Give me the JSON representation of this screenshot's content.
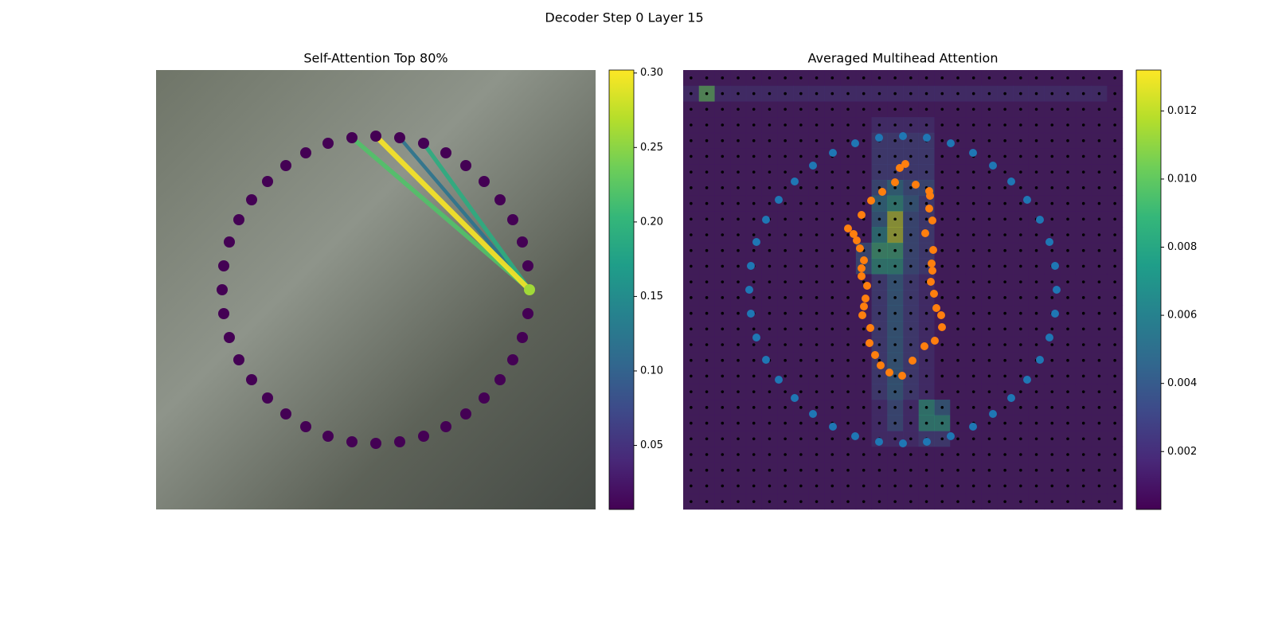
{
  "title": "Decoder Step 0 Layer 15",
  "chart_data": [
    {
      "type": "attention-graph",
      "title": "Self-Attention Top 80%",
      "colormap": "viridis",
      "color": "#440154",
      "xlim": [
        0,
        552
      ],
      "ylim": [
        552,
        0
      ],
      "x": [
        469,
        467,
        460,
        448,
        432,
        412,
        389,
        364,
        336,
        306,
        276,
        246,
        216,
        188,
        163,
        140,
        120,
        104,
        92,
        85,
        83,
        85,
        92,
        104,
        120,
        140,
        163,
        188,
        216,
        246,
        276,
        306,
        336,
        364,
        389,
        412,
        432,
        448,
        460,
        467
      ],
      "y": [
        276,
        306,
        336,
        364,
        389,
        412,
        432,
        448,
        460,
        467,
        469,
        467,
        460,
        448,
        432,
        412,
        389,
        364,
        336,
        306,
        276,
        246,
        216,
        188,
        163,
        140,
        120,
        104,
        92,
        85,
        83,
        85,
        92,
        104,
        120,
        140,
        163,
        188,
        216,
        246
      ],
      "query": {
        "index": 0,
        "value": 0.26
      },
      "edges": [
        {
          "from": 0,
          "to": 29,
          "value": 0.22
        },
        {
          "from": 0,
          "to": 31,
          "value": 0.12
        },
        {
          "from": 0,
          "to": 32,
          "value": 0.19
        },
        {
          "from": 0,
          "to": 30,
          "value": 0.3
        }
      ],
      "clim": [
        0.007,
        0.302
      ],
      "cticks": [
        0.05,
        {
          "value": 0.1,
          "label": "0.10"
        },
        0.15,
        {
          "value": 0.2,
          "label": "0.20"
        },
        0.25,
        {
          "value": 0.3,
          "label": "0.30"
        }
      ]
    },
    {
      "type": "heatmap",
      "title": "Averaged Multihead Attention",
      "colormap": "viridis",
      "xlim": [
        0,
        552
      ],
      "ylim": [
        552,
        0
      ],
      "matrix": [
        [
          0.001,
          0.001,
          0.001,
          0.001,
          0.001,
          0.001,
          0.001,
          0.001,
          0.001,
          0.001,
          0.001,
          0.001,
          0.001,
          0.001,
          0.001,
          0.001,
          0.001,
          0.001,
          0.001,
          0.001,
          0.001,
          0.001,
          0.001,
          0.001,
          0.001,
          0.001,
          0.001,
          0.001
        ],
        [
          0.002,
          0.01,
          0.002,
          0.002,
          0.002,
          0.002,
          0.002,
          0.002,
          0.002,
          0.002,
          0.002,
          0.002,
          0.002,
          0.002,
          0.002,
          0.002,
          0.002,
          0.002,
          0.002,
          0.002,
          0.002,
          0.002,
          0.002,
          0.002,
          0.002,
          0.002,
          0.002,
          0.001
        ],
        [
          0.001,
          0.001,
          0.001,
          0.001,
          0.001,
          0.001,
          0.001,
          0.001,
          0.001,
          0.001,
          0.001,
          0.001,
          0.001,
          0.001,
          0.001,
          0.001,
          0.001,
          0.001,
          0.001,
          0.001,
          0.001,
          0.001,
          0.001,
          0.001,
          0.001,
          0.001,
          0.001,
          0.001
        ],
        [
          0.001,
          0.001,
          0.001,
          0.001,
          0.001,
          0.001,
          0.001,
          0.001,
          0.001,
          0.001,
          0.001,
          0.001,
          0.002,
          0.002,
          0.002,
          0.002,
          0.001,
          0.001,
          0.001,
          0.001,
          0.001,
          0.001,
          0.001,
          0.001,
          0.001,
          0.001,
          0.001,
          0.001
        ],
        [
          0.001,
          0.001,
          0.001,
          0.001,
          0.001,
          0.001,
          0.001,
          0.001,
          0.001,
          0.001,
          0.001,
          0.001,
          0.003,
          0.003,
          0.003,
          0.003,
          0.001,
          0.001,
          0.001,
          0.001,
          0.001,
          0.001,
          0.001,
          0.001,
          0.001,
          0.001,
          0.001,
          0.001
        ],
        [
          0.001,
          0.001,
          0.001,
          0.001,
          0.001,
          0.001,
          0.001,
          0.001,
          0.001,
          0.001,
          0.001,
          0.001,
          0.003,
          0.003,
          0.003,
          0.003,
          0.001,
          0.001,
          0.001,
          0.001,
          0.001,
          0.001,
          0.001,
          0.001,
          0.001,
          0.001,
          0.001,
          0.001
        ],
        [
          0.001,
          0.001,
          0.001,
          0.001,
          0.001,
          0.001,
          0.001,
          0.001,
          0.001,
          0.001,
          0.001,
          0.001,
          0.003,
          0.003,
          0.003,
          0.003,
          0.001,
          0.001,
          0.001,
          0.001,
          0.001,
          0.001,
          0.001,
          0.001,
          0.001,
          0.001,
          0.001,
          0.001
        ],
        [
          0.001,
          0.001,
          0.001,
          0.001,
          0.001,
          0.001,
          0.001,
          0.001,
          0.001,
          0.001,
          0.001,
          0.001,
          0.004,
          0.006,
          0.004,
          0.004,
          0.001,
          0.001,
          0.001,
          0.001,
          0.001,
          0.001,
          0.001,
          0.001,
          0.001,
          0.001,
          0.001,
          0.001
        ],
        [
          0.001,
          0.001,
          0.001,
          0.001,
          0.001,
          0.001,
          0.001,
          0.001,
          0.001,
          0.001,
          0.001,
          0.001,
          0.006,
          0.008,
          0.005,
          0.003,
          0.001,
          0.001,
          0.001,
          0.001,
          0.001,
          0.001,
          0.001,
          0.001,
          0.001,
          0.001,
          0.001,
          0.001
        ],
        [
          0.001,
          0.001,
          0.001,
          0.001,
          0.001,
          0.001,
          0.001,
          0.001,
          0.001,
          0.001,
          0.001,
          0.001,
          0.005,
          0.012,
          0.004,
          0.003,
          0.001,
          0.001,
          0.001,
          0.001,
          0.001,
          0.001,
          0.001,
          0.001,
          0.001,
          0.001,
          0.001,
          0.001
        ],
        [
          0.001,
          0.001,
          0.001,
          0.001,
          0.001,
          0.001,
          0.001,
          0.001,
          0.001,
          0.001,
          0.001,
          0.001,
          0.007,
          0.012,
          0.004,
          0.003,
          0.001,
          0.001,
          0.001,
          0.001,
          0.001,
          0.001,
          0.001,
          0.001,
          0.001,
          0.001,
          0.001,
          0.001
        ],
        [
          0.001,
          0.001,
          0.001,
          0.001,
          0.001,
          0.001,
          0.001,
          0.001,
          0.001,
          0.001,
          0.001,
          0.004,
          0.009,
          0.009,
          0.004,
          0.003,
          0.001,
          0.001,
          0.001,
          0.001,
          0.001,
          0.001,
          0.001,
          0.001,
          0.001,
          0.001,
          0.001,
          0.001
        ],
        [
          0.001,
          0.001,
          0.001,
          0.001,
          0.001,
          0.001,
          0.001,
          0.001,
          0.001,
          0.001,
          0.001,
          0.004,
          0.008,
          0.008,
          0.004,
          0.003,
          0.001,
          0.001,
          0.001,
          0.001,
          0.001,
          0.001,
          0.001,
          0.001,
          0.001,
          0.001,
          0.001,
          0.001
        ],
        [
          0.001,
          0.001,
          0.001,
          0.001,
          0.001,
          0.001,
          0.001,
          0.001,
          0.001,
          0.001,
          0.001,
          0.001,
          0.003,
          0.005,
          0.003,
          0.002,
          0.001,
          0.001,
          0.001,
          0.001,
          0.001,
          0.001,
          0.001,
          0.001,
          0.001,
          0.001,
          0.001,
          0.001
        ],
        [
          0.001,
          0.001,
          0.001,
          0.001,
          0.001,
          0.001,
          0.001,
          0.001,
          0.001,
          0.001,
          0.001,
          0.001,
          0.003,
          0.005,
          0.003,
          0.002,
          0.001,
          0.001,
          0.001,
          0.001,
          0.001,
          0.001,
          0.001,
          0.001,
          0.001,
          0.001,
          0.001,
          0.001
        ],
        [
          0.001,
          0.001,
          0.001,
          0.001,
          0.001,
          0.001,
          0.001,
          0.001,
          0.001,
          0.001,
          0.001,
          0.001,
          0.003,
          0.005,
          0.003,
          0.002,
          0.001,
          0.001,
          0.001,
          0.001,
          0.001,
          0.001,
          0.001,
          0.001,
          0.001,
          0.001,
          0.001,
          0.001
        ],
        [
          0.001,
          0.001,
          0.001,
          0.001,
          0.001,
          0.001,
          0.001,
          0.001,
          0.001,
          0.001,
          0.001,
          0.001,
          0.003,
          0.005,
          0.003,
          0.002,
          0.001,
          0.001,
          0.001,
          0.001,
          0.001,
          0.001,
          0.001,
          0.001,
          0.001,
          0.001,
          0.001,
          0.001
        ],
        [
          0.001,
          0.001,
          0.001,
          0.001,
          0.001,
          0.001,
          0.001,
          0.001,
          0.001,
          0.001,
          0.001,
          0.001,
          0.003,
          0.005,
          0.003,
          0.002,
          0.001,
          0.001,
          0.001,
          0.001,
          0.001,
          0.001,
          0.001,
          0.001,
          0.001,
          0.001,
          0.001,
          0.001
        ],
        [
          0.001,
          0.001,
          0.001,
          0.001,
          0.001,
          0.001,
          0.001,
          0.001,
          0.001,
          0.001,
          0.001,
          0.001,
          0.003,
          0.005,
          0.003,
          0.002,
          0.001,
          0.001,
          0.001,
          0.001,
          0.001,
          0.001,
          0.001,
          0.001,
          0.001,
          0.001,
          0.001,
          0.001
        ],
        [
          0.001,
          0.001,
          0.001,
          0.001,
          0.001,
          0.001,
          0.001,
          0.001,
          0.001,
          0.001,
          0.001,
          0.001,
          0.003,
          0.005,
          0.003,
          0.002,
          0.001,
          0.001,
          0.001,
          0.001,
          0.001,
          0.001,
          0.001,
          0.001,
          0.001,
          0.001,
          0.001,
          0.001
        ],
        [
          0.001,
          0.001,
          0.001,
          0.001,
          0.001,
          0.001,
          0.001,
          0.001,
          0.001,
          0.001,
          0.001,
          0.001,
          0.003,
          0.005,
          0.003,
          0.002,
          0.001,
          0.001,
          0.001,
          0.001,
          0.001,
          0.001,
          0.001,
          0.001,
          0.001,
          0.001,
          0.001,
          0.001
        ],
        [
          0.001,
          0.001,
          0.001,
          0.001,
          0.001,
          0.001,
          0.001,
          0.001,
          0.001,
          0.001,
          0.001,
          0.001,
          0.002,
          0.004,
          0.002,
          0.008,
          0.005,
          0.001,
          0.001,
          0.001,
          0.001,
          0.001,
          0.001,
          0.001,
          0.001,
          0.001,
          0.001,
          0.001
        ],
        [
          0.001,
          0.001,
          0.001,
          0.001,
          0.001,
          0.001,
          0.001,
          0.001,
          0.001,
          0.001,
          0.001,
          0.001,
          0.002,
          0.004,
          0.002,
          0.008,
          0.008,
          0.001,
          0.001,
          0.001,
          0.001,
          0.001,
          0.001,
          0.001,
          0.001,
          0.001,
          0.001,
          0.001
        ],
        [
          0.001,
          0.001,
          0.001,
          0.001,
          0.001,
          0.001,
          0.001,
          0.001,
          0.001,
          0.001,
          0.001,
          0.001,
          0.002,
          0.002,
          0.002,
          0.003,
          0.003,
          0.001,
          0.001,
          0.001,
          0.001,
          0.001,
          0.001,
          0.001,
          0.001,
          0.001,
          0.001,
          0.001
        ],
        [
          0.001,
          0.001,
          0.001,
          0.001,
          0.001,
          0.001,
          0.001,
          0.001,
          0.001,
          0.001,
          0.001,
          0.001,
          0.001,
          0.001,
          0.001,
          0.001,
          0.001,
          0.001,
          0.001,
          0.001,
          0.001,
          0.001,
          0.001,
          0.001,
          0.001,
          0.001,
          0.001,
          0.001
        ],
        [
          0.001,
          0.001,
          0.001,
          0.001,
          0.001,
          0.001,
          0.001,
          0.001,
          0.001,
          0.001,
          0.001,
          0.001,
          0.001,
          0.001,
          0.001,
          0.001,
          0.001,
          0.001,
          0.001,
          0.001,
          0.001,
          0.001,
          0.001,
          0.001,
          0.001,
          0.001,
          0.001,
          0.001
        ],
        [
          0.001,
          0.001,
          0.001,
          0.001,
          0.001,
          0.001,
          0.001,
          0.001,
          0.001,
          0.001,
          0.001,
          0.001,
          0.001,
          0.001,
          0.001,
          0.001,
          0.001,
          0.001,
          0.001,
          0.001,
          0.001,
          0.001,
          0.001,
          0.001,
          0.001,
          0.001,
          0.001,
          0.001
        ],
        [
          0.001,
          0.001,
          0.001,
          0.001,
          0.001,
          0.001,
          0.001,
          0.001,
          0.001,
          0.001,
          0.001,
          0.001,
          0.001,
          0.001,
          0.001,
          0.001,
          0.001,
          0.001,
          0.001,
          0.001,
          0.001,
          0.001,
          0.001,
          0.001,
          0.001,
          0.001,
          0.001,
          0.001
        ]
      ],
      "clim": [
        0.0003,
        0.0132
      ],
      "cticks": [
        0.002,
        0.004,
        0.006,
        0.008,
        {
          "value": 0.01,
          "label": "0.010"
        },
        0.012
      ],
      "series": [
        {
          "color": "#1f77b4",
          "x": [
            469,
            467,
            460,
            448,
            432,
            412,
            389,
            364,
            336,
            306,
            276,
            246,
            216,
            188,
            163,
            140,
            120,
            104,
            92,
            85,
            83,
            85,
            92,
            104,
            120,
            140,
            163,
            188,
            216,
            246,
            276,
            306,
            336,
            364,
            389,
            412,
            432,
            448,
            460,
            467
          ],
          "y": [
            276,
            306,
            336,
            364,
            389,
            412,
            432,
            448,
            460,
            467,
            469,
            467,
            460,
            448,
            432,
            412,
            389,
            364,
            336,
            306,
            276,
            246,
            216,
            188,
            163,
            140,
            120,
            104,
            92,
            85,
            83,
            85,
            92,
            104,
            120,
            140,
            163,
            188,
            216,
            246
          ]
        },
        {
          "color": "#ff7f0e",
          "x": [
            279,
            272,
            292,
            266,
            309,
            310,
            250,
            236,
            309,
            224,
            313,
            207,
            214,
            304,
            218,
            222,
            314,
            227,
            312,
            224,
            313,
            224,
            311,
            231,
            315,
            229,
            227,
            318,
            225,
            324,
            235,
            325,
            316,
            234,
            303,
            241,
            288,
            248,
            259,
            275
          ],
          "y": [
            118,
            123,
            144,
            141,
            152,
            158,
            153,
            164,
            174,
            182,
            189,
            199,
            206,
            205,
            214,
            224,
            226,
            239,
            243,
            249,
            252,
            259,
            266,
            271,
            281,
            287,
            297,
            299,
            308,
            308,
            324,
            323,
            340,
            343,
            347,
            358,
            365,
            371,
            380,
            384
          ]
        }
      ]
    }
  ]
}
